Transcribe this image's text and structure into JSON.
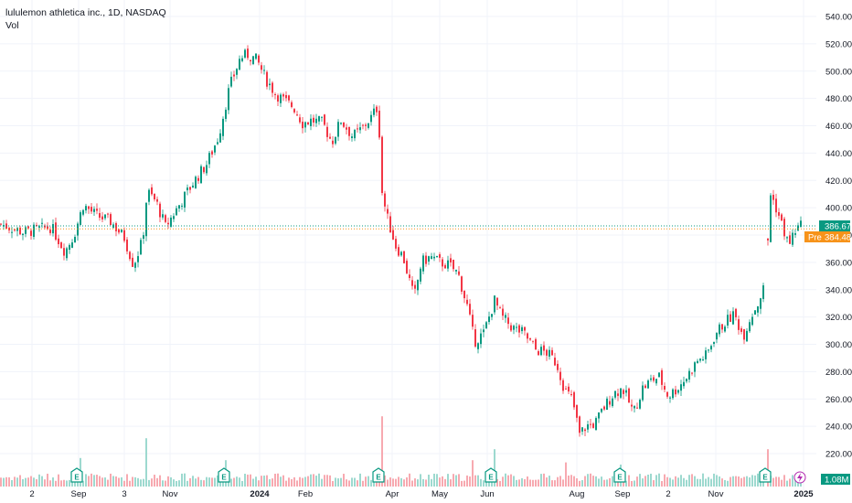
{
  "legend": {
    "title": "lululemon athletica inc., 1D, NASDAQ",
    "vol_label": "Vol"
  },
  "colors": {
    "up": "#089981",
    "down": "#f23645",
    "up_vol": "#9dd9cf",
    "down_vol": "#f7a9b0",
    "pre": "#f7931a",
    "grid": "#f0f3fa",
    "axis_text": "#131722"
  },
  "price_labels": {
    "last": "386.67",
    "pre_tag": "Pre",
    "pre": "384.48",
    "volume": "1.08M"
  },
  "chart_data": {
    "type": "candlestick",
    "title": "lululemon athletica inc., 1D, NASDAQ",
    "ylim": [
      210,
      545
    ],
    "y_ticks": [
      540,
      520,
      500,
      480,
      460,
      440,
      420,
      400,
      380,
      360,
      340,
      320,
      300,
      280,
      260,
      240,
      220
    ],
    "x_tick_labels": [
      "2",
      "Sep",
      "3",
      "Nov",
      "2024",
      "Feb",
      "Apr",
      "May",
      "Jun",
      "Aug",
      "Sep",
      "2",
      "Nov",
      "2025"
    ],
    "last_price": 386.67,
    "premarket_price": 384.48,
    "last_volume": "1.08M",
    "earnings_markers": [
      "E",
      "E",
      "E",
      "E",
      "E",
      "E"
    ],
    "close_path": [
      [
        0,
        388
      ],
      [
        25,
        382
      ],
      [
        40,
        384
      ],
      [
        55,
        386
      ],
      [
        70,
        368
      ],
      [
        80,
        380
      ],
      [
        90,
        402
      ],
      [
        105,
        394
      ],
      [
        120,
        390
      ],
      [
        135,
        378
      ],
      [
        145,
        358
      ],
      [
        155,
        376
      ],
      [
        160,
        412
      ],
      [
        170,
        404
      ],
      [
        180,
        386
      ],
      [
        195,
        402
      ],
      [
        210,
        418
      ],
      [
        225,
        432
      ],
      [
        238,
        452
      ],
      [
        250,
        488
      ],
      [
        262,
        510
      ],
      [
        270,
        512
      ],
      [
        280,
        508
      ],
      [
        290,
        494
      ],
      [
        300,
        484
      ],
      [
        310,
        478
      ],
      [
        320,
        474
      ],
      [
        330,
        462
      ],
      [
        340,
        464
      ],
      [
        352,
        462
      ],
      [
        362,
        448
      ],
      [
        372,
        464
      ],
      [
        385,
        452
      ],
      [
        395,
        458
      ],
      [
        405,
        466
      ],
      [
        413,
        475
      ],
      [
        416,
        415
      ],
      [
        422,
        394
      ],
      [
        432,
        372
      ],
      [
        440,
        364
      ],
      [
        452,
        334
      ],
      [
        460,
        360
      ],
      [
        470,
        364
      ],
      [
        480,
        360
      ],
      [
        490,
        358
      ],
      [
        500,
        352
      ],
      [
        510,
        328
      ],
      [
        518,
        302
      ],
      [
        528,
        308
      ],
      [
        540,
        332
      ],
      [
        548,
        320
      ],
      [
        560,
        312
      ],
      [
        572,
        308
      ],
      [
        585,
        296
      ],
      [
        597,
        294
      ],
      [
        608,
        286
      ],
      [
        617,
        266
      ],
      [
        625,
        260
      ],
      [
        633,
        234
      ],
      [
        640,
        240
      ],
      [
        650,
        242
      ],
      [
        660,
        254
      ],
      [
        670,
        264
      ],
      [
        680,
        268
      ],
      [
        692,
        250
      ],
      [
        702,
        268
      ],
      [
        712,
        274
      ],
      [
        720,
        276
      ],
      [
        730,
        262
      ],
      [
        740,
        268
      ],
      [
        750,
        276
      ],
      [
        762,
        288
      ],
      [
        772,
        292
      ],
      [
        782,
        308
      ],
      [
        792,
        316
      ],
      [
        802,
        322
      ],
      [
        812,
        306
      ],
      [
        820,
        320
      ],
      [
        828,
        330
      ],
      [
        836,
        344
      ]
    ],
    "close_path_2": [
      [
        839,
        376
      ],
      [
        842,
        410
      ],
      [
        848,
        400
      ],
      [
        855,
        386
      ],
      [
        862,
        372
      ],
      [
        868,
        383
      ],
      [
        876,
        387
      ]
    ],
    "volume_spikes": [
      [
        87,
        2.6
      ],
      [
        158,
        8.6
      ],
      [
        160,
        4.4
      ],
      [
        245,
        2.4
      ],
      [
        416,
        6.4
      ],
      [
        517,
        2.4
      ],
      [
        540,
        3.4
      ],
      [
        617,
        2.2
      ],
      [
        679,
        2.0
      ],
      [
        838,
        3.4
      ]
    ]
  }
}
